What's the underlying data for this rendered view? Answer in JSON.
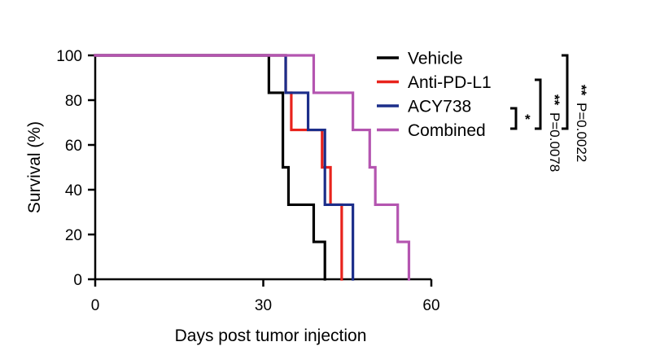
{
  "chart_data": {
    "type": "line",
    "subtype": "kaplan-meier-step",
    "xlabel": "Days post tumor injection",
    "ylabel": "Survival (%)",
    "xlim": [
      0,
      60
    ],
    "ylim": [
      0,
      100
    ],
    "xticks": [
      0,
      30,
      60
    ],
    "yticks": [
      0,
      20,
      40,
      60,
      80,
      100
    ],
    "grid": false,
    "legend_position": "right",
    "series": [
      {
        "name": "Vehicle",
        "color": "#000000",
        "x": [
          0,
          31,
          33.5,
          34.5,
          39,
          41
        ],
        "y": [
          100,
          83.3,
          50,
          33.3,
          16.7,
          0
        ]
      },
      {
        "name": "Anti-PD-L1",
        "color": "#e8231c",
        "x": [
          0,
          34,
          35,
          40.5,
          42,
          44
        ],
        "y": [
          100,
          83.3,
          66.7,
          50,
          33.3,
          0
        ]
      },
      {
        "name": "ACY738",
        "color": "#1c2e8a",
        "x": [
          0,
          34,
          38,
          41,
          46
        ],
        "y": [
          100,
          83.3,
          66.7,
          33.3,
          0
        ]
      },
      {
        "name": "Combined",
        "color": "#b455b0",
        "x": [
          0,
          39,
          46,
          49,
          50,
          54,
          56
        ],
        "y": [
          100,
          83.3,
          66.7,
          50,
          33.3,
          16.7,
          0
        ]
      }
    ],
    "annotations": [
      {
        "stars": "*",
        "p": ""
      },
      {
        "stars": "**",
        "p": "P=0.0078"
      },
      {
        "stars": "**",
        "p": "P=0.0022"
      }
    ]
  }
}
